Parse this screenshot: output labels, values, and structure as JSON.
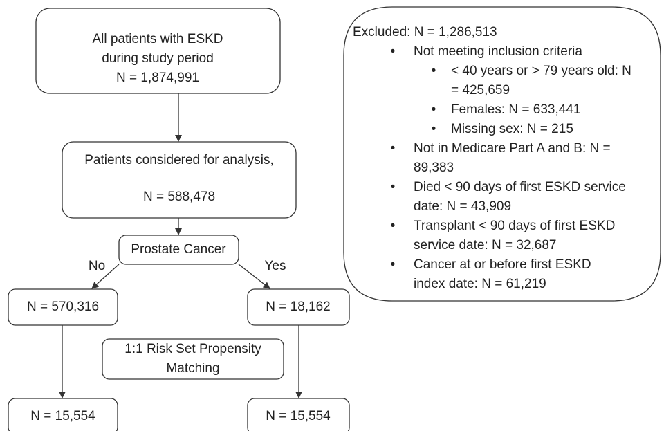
{
  "nodes": [
    {
      "lines": [
        "All patients with ESKD",
        "during study period",
        "N = 1,874,991"
      ]
    },
    {
      "lines": [
        "Patients considered for analysis,",
        "N = 588,478"
      ]
    },
    {
      "lines": [
        "Prostate Cancer"
      ]
    },
    {
      "lines": [
        "N = 570,316"
      ]
    },
    {
      "lines": [
        "N = 18,162"
      ]
    },
    {
      "lines": [
        "1:1 Risk Set Propensity",
        "Matching"
      ]
    },
    {
      "lines": [
        "N = 15,554"
      ]
    },
    {
      "lines": [
        "N = 15,554"
      ]
    }
  ],
  "edges": [
    {
      "label": "No"
    },
    {
      "label": "Yes"
    }
  ],
  "excluded": {
    "title": "Excluded: N = 1,286,513",
    "items": [
      {
        "lines": [
          "Not meeting inclusion criteria"
        ],
        "subitems": [
          {
            "lines": [
              "< 40 years or > 79 years old: N",
              "= 425,659"
            ]
          },
          {
            "lines": [
              "Females: N = 633,441"
            ]
          },
          {
            "lines": [
              "Missing sex: N = 215"
            ]
          }
        ]
      },
      {
        "lines": [
          "Not in Medicare Part A and B: N =",
          "89,383"
        ]
      },
      {
        "lines": [
          "Died < 90 days of first ESKD service",
          "date: N = 43,909"
        ]
      },
      {
        "lines": [
          "Transplant < 90 days of first ESKD",
          "service date: N = 32,687"
        ]
      },
      {
        "lines": [
          "Cancer at or before first ESKD",
          "index date: N = 61,219"
        ]
      }
    ]
  }
}
